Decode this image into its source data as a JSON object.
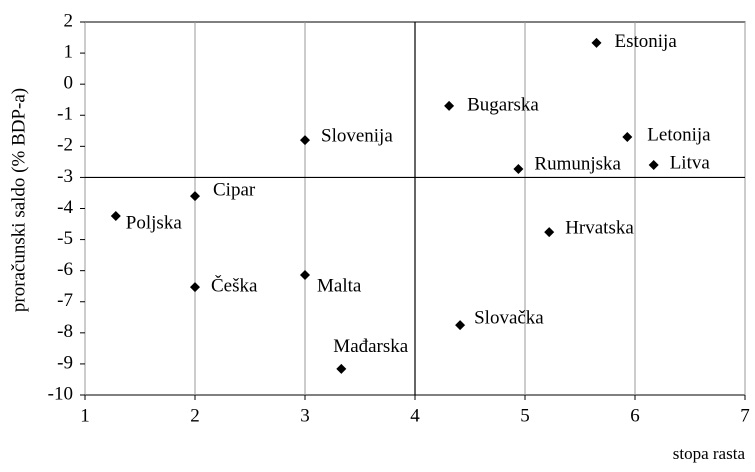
{
  "chart_data": {
    "type": "scatter",
    "x_label": "stopa rasta",
    "y_label": "proračunski saldo (% BDP-a)",
    "series": [
      {
        "color": "#000000",
        "labels": [
          "Estonija",
          "Bugarska",
          "Slovenija",
          "Letonija",
          "Rumunjska",
          "Litva",
          "Cipar",
          "Poljska",
          "Hrvatska",
          "Češka",
          "Malta",
          "Slovačka",
          "Mađarska"
        ],
        "x": [
          5.65,
          4.31,
          3.0,
          5.93,
          4.94,
          6.17,
          2.0,
          1.28,
          5.22,
          2.0,
          3.0,
          4.41,
          3.33
        ],
        "values": [
          1.33,
          -0.7,
          -1.8,
          -1.7,
          -2.73,
          -2.6,
          -3.6,
          -4.24,
          -4.76,
          -6.53,
          -6.14,
          -7.75,
          -9.16
        ]
      }
    ],
    "xlim": [
      1,
      7
    ],
    "xticks": [
      1,
      2,
      3,
      4,
      5,
      6,
      7
    ],
    "ylim": [
      -10,
      2
    ],
    "yticks": [
      -10,
      -9,
      -8,
      -7,
      -6,
      -5,
      -4,
      -3,
      -2,
      -1,
      0,
      1,
      2
    ],
    "grid": "x",
    "crosshair": {
      "x": 4,
      "y": -3
    }
  }
}
